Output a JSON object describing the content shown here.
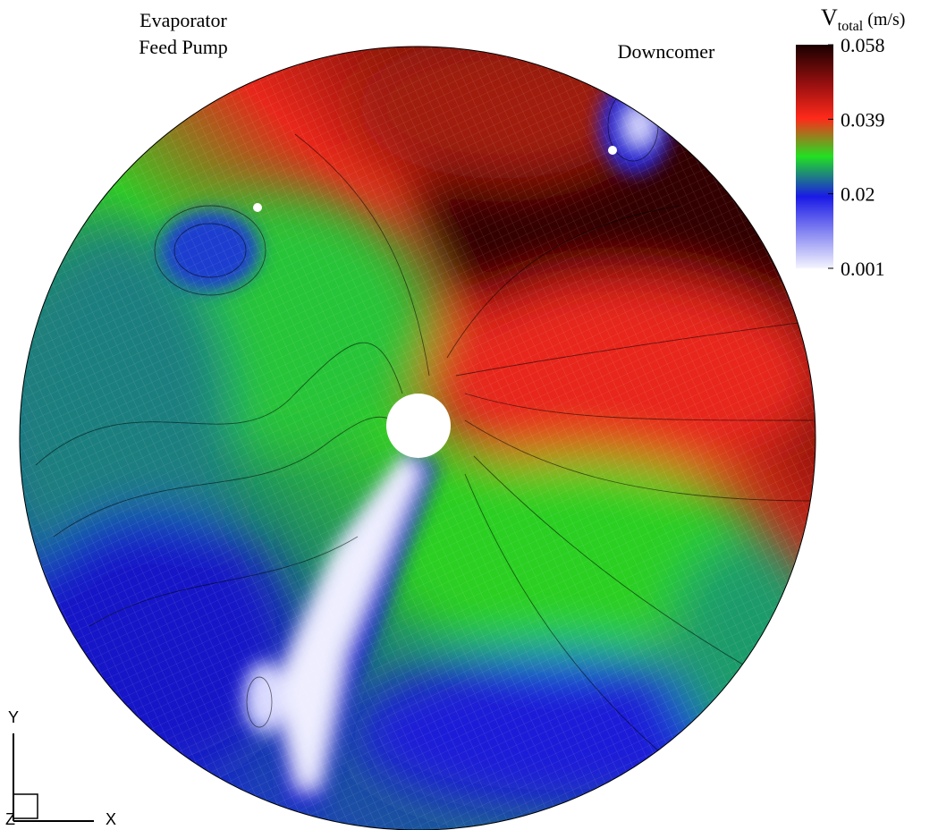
{
  "colorbar": {
    "title": "V",
    "title_subscript": "total",
    "title_unit": "(m/s)",
    "range": [
      0.001,
      0.058
    ],
    "ticks": [
      0.058,
      0.039,
      0.02,
      0.001
    ]
  },
  "labels": {
    "evaporator": [
      "Evaporator",
      "Feed Pump"
    ],
    "downcomer": "Downcomer"
  },
  "axes": {
    "x": "X",
    "y": "Y",
    "z": "Z"
  }
}
